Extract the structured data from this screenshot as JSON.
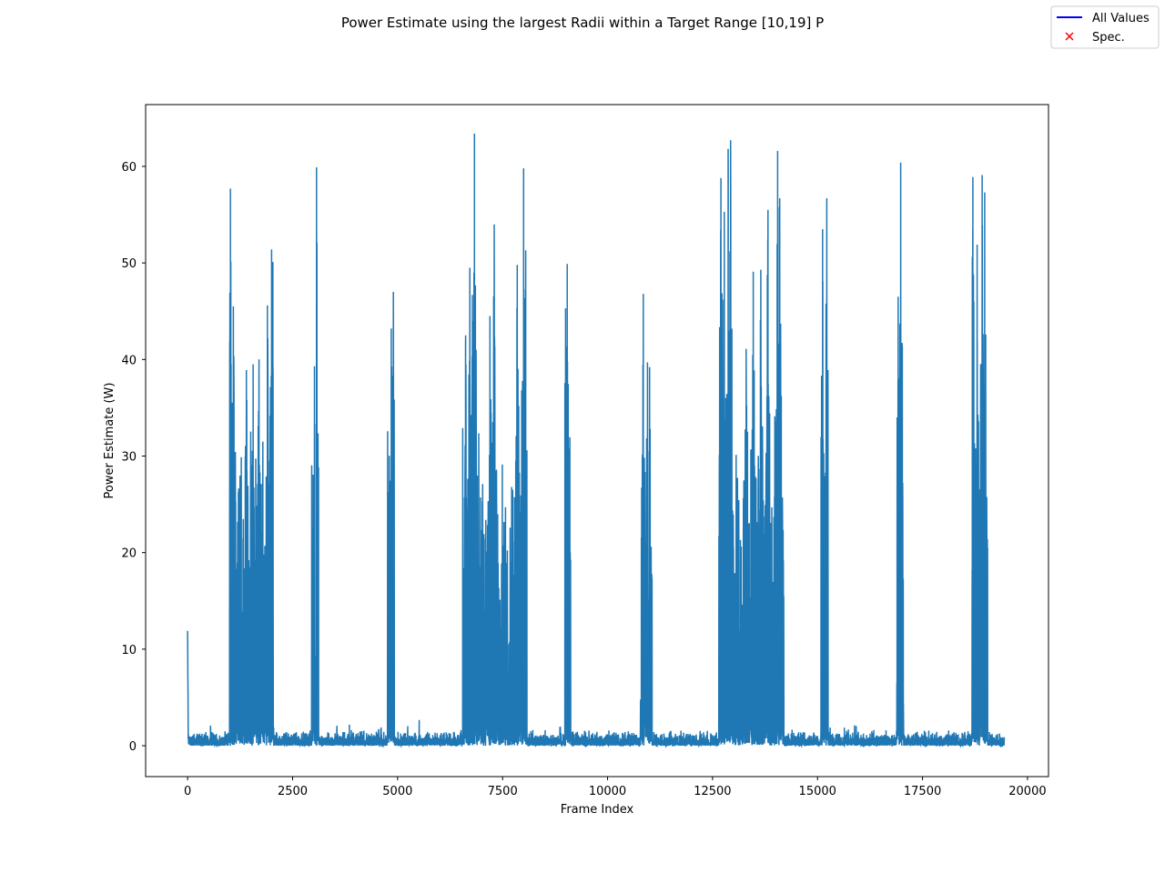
{
  "chart_data": {
    "type": "line",
    "title": "Power Estimate using the largest Radii within a Target Range [10,19] P",
    "xlabel": "Frame Index",
    "ylabel": "Power Estimate (W)",
    "xlim": [
      -1000,
      20500
    ],
    "ylim": [
      -3.2,
      66.4
    ],
    "xticks": [
      0,
      2500,
      5000,
      7500,
      10000,
      12500,
      15000,
      17500,
      20000
    ],
    "yticks": [
      0,
      10,
      20,
      30,
      40,
      50,
      60
    ],
    "grid": false,
    "legend_position": "top-right",
    "legend": [
      {
        "label": "All Values",
        "marker": "line",
        "color": "#0000ff"
      },
      {
        "label": "Spec.",
        "marker": "x",
        "color": "#ff0000"
      }
    ],
    "series": [
      {
        "color": "#1f77b4",
        "x_range": [
          0,
          19450
        ],
        "baseline_range": [
          0,
          2.5
        ],
        "bursts": [
          {
            "x": [
              0,
              15
            ],
            "peak": 11.9
          },
          {
            "x": [
              1000,
              2050
            ],
            "peaks": [
              [
                1020,
                57.7
              ],
              [
                1090,
                45.5
              ],
              [
                1400,
                38.9
              ],
              [
                1560,
                39.5
              ],
              [
                1700,
                40.0
              ],
              [
                1900,
                45.6
              ],
              [
                2000,
                51.4
              ],
              [
                2030,
                50.1
              ]
            ]
          },
          {
            "x": [
              2950,
              3120
            ],
            "peaks": [
              [
                3020,
                39.3
              ],
              [
                3070,
                59.9
              ]
            ]
          },
          {
            "x": [
              4750,
              4920
            ],
            "peaks": [
              [
                4850,
                43.2
              ],
              [
                4900,
                47.0
              ]
            ]
          },
          {
            "x": [
              6550,
              8080
            ],
            "peaks": [
              [
                6620,
                42.5
              ],
              [
                6720,
                49.5
              ],
              [
                6780,
                46.7
              ],
              [
                6830,
                63.4
              ],
              [
                7200,
                44.5
              ],
              [
                7300,
                54.0
              ],
              [
                7850,
                49.8
              ],
              [
                8000,
                59.8
              ],
              [
                8050,
                51.3
              ]
            ]
          },
          {
            "x": [
              8980,
              9120
            ],
            "peaks": [
              [
                9000,
                45.3
              ],
              [
                9040,
                49.9
              ],
              [
                9100,
                23.6
              ]
            ]
          },
          {
            "x": [
              10780,
              11060
            ],
            "peaks": [
              [
                10850,
                46.8
              ],
              [
                10950,
                39.7
              ],
              [
                11000,
                39.2
              ]
            ]
          },
          {
            "x": [
              12650,
              14200
            ],
            "peaks": [
              [
                12700,
                58.8
              ],
              [
                12780,
                55.3
              ],
              [
                12870,
                61.8
              ],
              [
                12930,
                62.7
              ],
              [
                13300,
                41.1
              ],
              [
                13470,
                49.1
              ],
              [
                13650,
                49.3
              ],
              [
                13820,
                55.5
              ],
              [
                14050,
                61.6
              ],
              [
                14100,
                56.7
              ]
            ]
          },
          {
            "x": [
              15080,
              15250
            ],
            "peaks": [
              [
                15120,
                53.5
              ],
              [
                15220,
                56.7
              ]
            ]
          },
          {
            "x": [
              16880,
              17050
            ],
            "peaks": [
              [
                16920,
                46.5
              ],
              [
                16980,
                60.4
              ],
              [
                17020,
                41.4
              ]
            ]
          },
          {
            "x": [
              18680,
              19050
            ],
            "peaks": [
              [
                18700,
                58.9
              ],
              [
                18800,
                51.9
              ],
              [
                18920,
                59.1
              ],
              [
                18980,
                57.3
              ]
            ]
          }
        ]
      }
    ]
  }
}
